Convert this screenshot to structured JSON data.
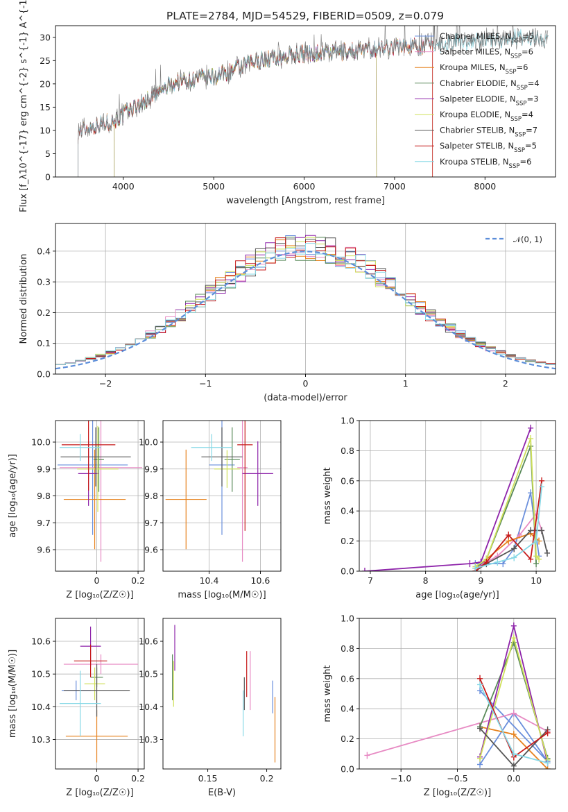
{
  "colors": [
    "#6a8fdc",
    "#e78ac3",
    "#e6821e",
    "#5a8a5a",
    "#8e24aa",
    "#cfe05a",
    "#555555",
    "#c61a1a",
    "#86d8e6"
  ],
  "chart_data": [
    {
      "id": "spectrum",
      "type": "line",
      "title": "PLATE=2784, MJD=54529, FIBERID=0509, z=0.079",
      "xlabel": "wavelength [Angstrom, rest frame]",
      "ylabel": "Flux [f_λ10^{-17} erg cm^{-2} s^{-1} A^{-1}]",
      "xlim": [
        3250,
        8780
      ],
      "ylim": [
        0,
        32.5
      ],
      "xticks": [
        4000,
        5000,
        6000,
        7000,
        8000
      ],
      "yticks": [
        0,
        5,
        10,
        15,
        20,
        25,
        30
      ],
      "grid": false,
      "legend_position": "top-right",
      "continuum": [
        [
          3500,
          10
        ],
        [
          3700,
          11
        ],
        [
          3900,
          12
        ],
        [
          4000,
          13.5
        ],
        [
          4300,
          17
        ],
        [
          4600,
          20.5
        ],
        [
          5000,
          21.5
        ],
        [
          5500,
          25
        ],
        [
          6000,
          26.5
        ],
        [
          6500,
          27
        ],
        [
          7000,
          28
        ],
        [
          7400,
          28.5
        ],
        [
          8000,
          29.5
        ],
        [
          8600,
          30
        ]
      ],
      "series": [
        {
          "name": "Chabrier MILES, N_SSP=5",
          "start": 3500,
          "end": 7420
        },
        {
          "name": "Salpeter MILES, N_SSP=6",
          "start": 3500,
          "end": 7420
        },
        {
          "name": "Kroupa MILES, N_SSP=6",
          "start": 3500,
          "end": 7420
        },
        {
          "name": "Chabrier ELODIE, N_SSP=4",
          "start": 3900,
          "end": 6800
        },
        {
          "name": "Salpeter ELODIE, N_SSP=3",
          "start": 3900,
          "end": 6800
        },
        {
          "name": "Kroupa ELODIE, N_SSP=4",
          "start": 3900,
          "end": 6800
        },
        {
          "name": "Chabrier STELIB, N_SSP=7",
          "start": 3500,
          "end": 8700
        },
        {
          "name": "Salpeter STELIB, N_SSP=5",
          "start": 3500,
          "end": 7420
        },
        {
          "name": "Kroupa STELIB, N_SSP=6",
          "start": 3500,
          "end": 8700
        }
      ]
    },
    {
      "id": "residuals",
      "type": "line",
      "xlabel": "(data-model)/error",
      "ylabel": "Normed distribution",
      "xlim": [
        -2.5,
        2.5
      ],
      "ylim": [
        0,
        0.49
      ],
      "xticks": [
        -2,
        -1,
        0,
        1,
        2
      ],
      "yticks": [
        0.0,
        0.1,
        0.2,
        0.3,
        0.4
      ],
      "grid": true,
      "legend_position": "top-right",
      "reference": {
        "label": "𝒩(0, 1)",
        "mean": 0,
        "sigma": 1
      },
      "bin_width": 0.1
    },
    {
      "id": "age_vs_Z",
      "type": "scatter",
      "xlabel": "Z [log₁₀(Z/Z☉)]",
      "ylabel": "age  [log₁₀(age/yr)]",
      "xlim": [
        -0.2,
        0.23
      ],
      "ylim": [
        9.52,
        10.08
      ],
      "xticks": [
        0.0,
        0.2
      ],
      "yticks": [
        9.6,
        9.7,
        9.8,
        9.9,
        10.0
      ],
      "grid": true,
      "points": [
        {
          "x": -0.02,
          "y": 9.915,
          "xerr": 0.17,
          "yerr": 0.26
        },
        {
          "x": 0.02,
          "y": 9.905,
          "xerr": 0.2,
          "yerr": 0.35
        },
        {
          "x": -0.01,
          "y": 9.787,
          "xerr": 0.15,
          "yerr": 0.185
        },
        {
          "x": 0.01,
          "y": 9.935,
          "xerr": 0.025,
          "yerr": 0.12
        },
        {
          "x": -0.04,
          "y": 9.883,
          "xerr": 0.05,
          "yerr": 0.12
        },
        {
          "x": 0.005,
          "y": 9.9,
          "xerr": 0.1,
          "yerr": 0.16
        },
        {
          "x": -0.005,
          "y": 9.945,
          "xerr": 0.17,
          "yerr": 0.11
        },
        {
          "x": -0.04,
          "y": 9.99,
          "xerr": 0.13,
          "yerr": 0.17
        },
        {
          "x": -0.08,
          "y": 9.98,
          "xerr": 0.1,
          "yerr": 0.05
        }
      ]
    },
    {
      "id": "age_vs_mass",
      "type": "scatter",
      "xlabel": "mass [log₁₀(M/M☉)]",
      "ylabel": "",
      "xlim": [
        10.22,
        10.68
      ],
      "ylim": [
        9.52,
        10.08
      ],
      "xticks": [
        10.4,
        10.6
      ],
      "yticks": [
        9.6,
        9.7,
        9.8,
        9.9,
        10.0
      ],
      "grid": true,
      "points": [
        {
          "x": 10.45,
          "y": 9.915,
          "xerr": 0.05,
          "yerr": 0.26
        },
        {
          "x": 10.53,
          "y": 9.905,
          "xerr": 0.02,
          "yerr": 0.35
        },
        {
          "x": 10.31,
          "y": 9.787,
          "xerr": 0.08,
          "yerr": 0.185
        },
        {
          "x": 10.49,
          "y": 9.935,
          "xerr": 0.03,
          "yerr": 0.12
        },
        {
          "x": 10.59,
          "y": 9.883,
          "xerr": 0.06,
          "yerr": 0.12
        },
        {
          "x": 10.47,
          "y": 9.9,
          "xerr": 0.05,
          "yerr": 0.07
        },
        {
          "x": 10.45,
          "y": 9.945,
          "xerr": 0.08,
          "yerr": 0.11
        },
        {
          "x": 10.54,
          "y": 9.99,
          "xerr": 0.03,
          "yerr": 0.32
        },
        {
          "x": 10.41,
          "y": 9.98,
          "xerr": 0.08,
          "yerr": 0.05
        }
      ]
    },
    {
      "id": "weight_vs_age",
      "type": "line",
      "xlabel": "age  [log₁₀(age/yr)]",
      "ylabel": "mass weight",
      "xlim": [
        6.8,
        10.35
      ],
      "ylim": [
        0,
        1.0
      ],
      "xticks": [
        7,
        8,
        9,
        10
      ],
      "yticks": [
        0.0,
        0.2,
        0.4,
        0.6,
        0.8,
        1.0
      ],
      "grid": true
    },
    {
      "id": "mass_vs_Z",
      "type": "scatter",
      "xlabel": "Z [log₁₀(Z/Z☉)]",
      "ylabel": "mass [log₁₀(M/M☉)]",
      "xlim": [
        -0.2,
        0.23
      ],
      "ylim": [
        10.21,
        10.67
      ],
      "xticks": [
        0.0,
        0.2
      ],
      "yticks": [
        10.3,
        10.4,
        10.5,
        10.6
      ],
      "grid": true,
      "points": [
        {
          "x": -0.1,
          "y": 10.45,
          "xerr": 0.07,
          "yerr": 0.03
        },
        {
          "x": 0.02,
          "y": 10.53,
          "xerr": 0.18,
          "yerr": 0.03
        },
        {
          "x": 0.0,
          "y": 10.31,
          "xerr": 0.15,
          "yerr": 0.08
        },
        {
          "x": 0.0,
          "y": 10.49,
          "xerr": 0.03,
          "yerr": 0.03
        },
        {
          "x": -0.03,
          "y": 10.585,
          "xerr": 0.05,
          "yerr": 0.06
        },
        {
          "x": -0.01,
          "y": 10.47,
          "xerr": 0.05,
          "yerr": 0.05
        },
        {
          "x": 0.0,
          "y": 10.45,
          "xerr": 0.16,
          "yerr": 0.08
        },
        {
          "x": -0.03,
          "y": 10.54,
          "xerr": 0.08,
          "yerr": 0.05
        },
        {
          "x": -0.08,
          "y": 10.41,
          "xerr": 0.1,
          "yerr": 0.1
        }
      ]
    },
    {
      "id": "mass_vs_ebv",
      "type": "scatter",
      "xlabel": "E(B-V)",
      "ylabel": "",
      "xlim": [
        0.112,
        0.212
      ],
      "ylim": [
        10.21,
        10.67
      ],
      "xticks": [
        0.15,
        0.2
      ],
      "yticks": [
        10.3,
        10.4,
        10.5,
        10.6
      ],
      "grid": false,
      "points": [
        {
          "x": 0.205,
          "y": 10.43,
          "yerr": 0.05
        },
        {
          "x": 0.186,
          "y": 10.48,
          "yerr": 0.09
        },
        {
          "x": 0.207,
          "y": 10.33,
          "yerr": 0.1
        },
        {
          "x": 0.12,
          "y": 10.49,
          "yerr": 0.07
        },
        {
          "x": 0.122,
          "y": 10.58,
          "yerr": 0.07
        },
        {
          "x": 0.121,
          "y": 10.47,
          "yerr": 0.07
        },
        {
          "x": 0.181,
          "y": 10.44,
          "yerr": 0.05
        },
        {
          "x": 0.183,
          "y": 10.5,
          "yerr": 0.07
        },
        {
          "x": 0.18,
          "y": 10.38,
          "yerr": 0.07
        }
      ]
    },
    {
      "id": "weight_vs_Z",
      "type": "line",
      "xlabel": "Z [log₁₀(Z/Z☉)]",
      "ylabel": "mass weight",
      "xlim": [
        -1.37,
        0.37
      ],
      "ylim": [
        0,
        1.0
      ],
      "xticks": [
        -1.0,
        -0.5,
        0.0
      ],
      "yticks": [
        0.0,
        0.2,
        0.4,
        0.6,
        0.8,
        1.0
      ],
      "grid": true
    }
  ],
  "weights_vs_age": [
    [
      [
        8.9,
        0.05
      ],
      [
        9.4,
        0.05
      ],
      [
        9.6,
        0.15
      ],
      [
        9.9,
        0.52
      ],
      [
        10.05,
        0.1
      ]
    ],
    [
      [
        8.9,
        0.02
      ],
      [
        9.3,
        0.1
      ],
      [
        9.7,
        0.24
      ],
      [
        10.0,
        0.38
      ],
      [
        10.1,
        0.27
      ]
    ],
    [
      [
        8.9,
        0.02
      ],
      [
        9.1,
        0.08
      ],
      [
        9.5,
        0.2
      ],
      [
        9.9,
        0.25
      ],
      [
        10.05,
        0.2
      ]
    ],
    [
      [
        8.9,
        0.02
      ],
      [
        9.1,
        0.08
      ],
      [
        9.9,
        0.83
      ],
      [
        10.0,
        0.05
      ]
    ],
    [
      [
        6.9,
        0.0
      ],
      [
        8.8,
        0.05
      ],
      [
        9.0,
        0.06
      ],
      [
        9.9,
        0.95
      ]
    ],
    [
      [
        8.9,
        0.03
      ],
      [
        9.1,
        0.08
      ],
      [
        9.9,
        0.88
      ],
      [
        10.0,
        0.1
      ],
      [
        10.05,
        0.08
      ]
    ],
    [
      [
        8.9,
        0.0
      ],
      [
        9.1,
        0.05
      ],
      [
        9.6,
        0.15
      ],
      [
        9.9,
        0.27
      ],
      [
        10.1,
        0.27
      ],
      [
        10.2,
        0.12
      ]
    ],
    [
      [
        8.9,
        0.0
      ],
      [
        9.1,
        0.06
      ],
      [
        9.5,
        0.24
      ],
      [
        9.9,
        0.08
      ],
      [
        10.1,
        0.6
      ]
    ],
    [
      [
        8.9,
        0.02
      ],
      [
        9.3,
        0.06
      ],
      [
        9.6,
        0.09
      ],
      [
        10.0,
        0.2
      ],
      [
        10.1,
        0.56
      ]
    ]
  ],
  "weights_vs_Z": [
    [
      [
        -0.3,
        0.03
      ],
      [
        0.0,
        0.37
      ],
      [
        0.3,
        0.05
      ],
      [
        -0.3,
        0.52
      ]
    ],
    [
      [
        -1.3,
        0.09
      ],
      [
        0.0,
        0.37
      ],
      [
        0.3,
        0.25
      ]
    ],
    [
      [
        -0.3,
        0.28
      ],
      [
        0.0,
        0.23
      ],
      [
        0.3,
        0.0
      ]
    ],
    [
      [
        -0.3,
        0.28
      ],
      [
        0.0,
        0.84
      ],
      [
        0.3,
        0.07
      ]
    ],
    [
      [
        -0.3,
        0.08
      ],
      [
        0.0,
        0.95
      ],
      [
        0.3,
        0.04
      ]
    ],
    [
      [
        -0.3,
        0.07
      ],
      [
        0.0,
        0.87
      ],
      [
        0.3,
        0.06
      ]
    ],
    [
      [
        -0.3,
        0.27
      ],
      [
        0.0,
        0.02
      ],
      [
        0.3,
        0.26
      ]
    ],
    [
      [
        -0.3,
        0.6
      ],
      [
        0.0,
        0.08
      ],
      [
        0.3,
        0.24
      ]
    ],
    [
      [
        -0.3,
        0.56
      ],
      [
        0.0,
        0.1
      ],
      [
        0.3,
        0.04
      ]
    ]
  ]
}
